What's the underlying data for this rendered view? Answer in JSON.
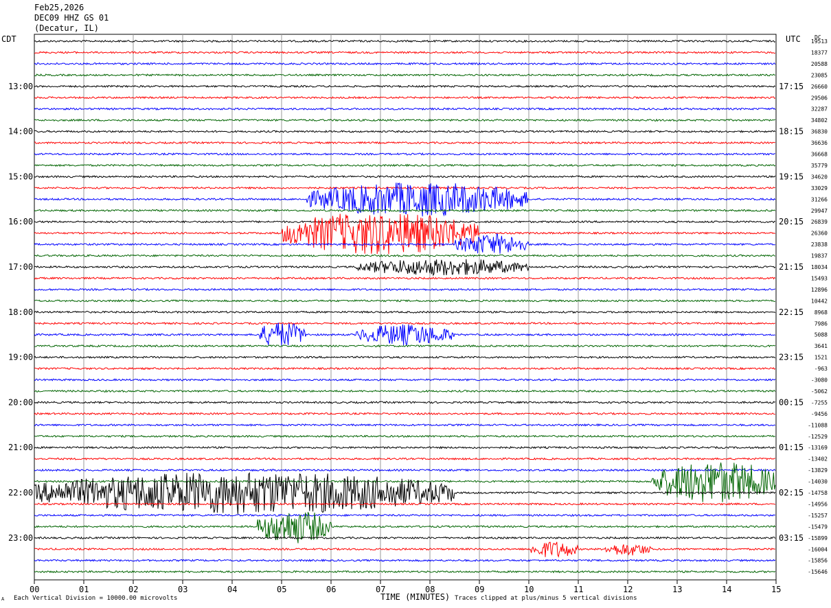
{
  "header": {
    "date": "Feb25,2026",
    "station": "DEC09 HHZ GS 01",
    "location": "(Decatur, IL)"
  },
  "axis_labels": {
    "left_tz": "CDT",
    "right_tz": "UTC",
    "dc": "DC",
    "xlabel": "TIME (MINUTES)"
  },
  "footer": {
    "left_note": "Each Vertical Division = 10000.00 microvolts",
    "right_note": "Traces clipped at plus/minus 5 vertical divisions",
    "corner_mark": "A"
  },
  "chart_data": {
    "type": "line",
    "title": "DEC09 HHZ GS 01",
    "xlabel": "TIME (MINUTES)",
    "xlim": [
      0,
      15
    ],
    "x_ticks": [
      "00",
      "01",
      "02",
      "03",
      "04",
      "05",
      "06",
      "07",
      "08",
      "09",
      "10",
      "11",
      "12",
      "13",
      "14",
      "15"
    ],
    "trace_colors": [
      "#000000",
      "#ff0000",
      "#0000ff",
      "#006400"
    ],
    "left_time_labels": [
      {
        "trace": 4,
        "label": "13:00"
      },
      {
        "trace": 8,
        "label": "14:00"
      },
      {
        "trace": 12,
        "label": "15:00"
      },
      {
        "trace": 16,
        "label": "16:00"
      },
      {
        "trace": 20,
        "label": "17:00"
      },
      {
        "trace": 24,
        "label": "18:00"
      },
      {
        "trace": 28,
        "label": "19:00"
      },
      {
        "trace": 32,
        "label": "20:00"
      },
      {
        "trace": 36,
        "label": "21:00"
      },
      {
        "trace": 40,
        "label": "22:00"
      },
      {
        "trace": 44,
        "label": "23:00"
      }
    ],
    "right_time_labels": [
      {
        "trace": 4,
        "label": "17:15"
      },
      {
        "trace": 8,
        "label": "18:15"
      },
      {
        "trace": 12,
        "label": "19:15"
      },
      {
        "trace": 16,
        "label": "20:15"
      },
      {
        "trace": 20,
        "label": "21:15"
      },
      {
        "trace": 24,
        "label": "22:15"
      },
      {
        "trace": 28,
        "label": "23:15"
      },
      {
        "trace": 32,
        "label": "00:15"
      },
      {
        "trace": 36,
        "label": "01:15"
      },
      {
        "trace": 40,
        "label": "02:15"
      },
      {
        "trace": 44,
        "label": "03:15"
      }
    ],
    "dc_offsets": [
      "19513",
      "18377",
      "20588",
      "23085",
      "26660",
      "29506",
      "32287",
      "34802",
      "36830",
      "36636",
      "36668",
      "35779",
      "34620",
      "33029",
      "31266",
      "29947",
      "26839",
      "26360",
      "23838",
      "19837",
      "18034",
      "15493",
      "12896",
      "10442",
      "8968",
      "7986",
      "5088",
      "3641",
      "1521",
      "-963",
      "-3080",
      "-5062",
      "-7255",
      "-9456",
      "-11088",
      "-12529",
      "-13169",
      "-13402",
      "-13829",
      "-14030",
      "-14758",
      "-14956",
      "-15257",
      "-15479",
      "-15899",
      "-16004",
      "-15856",
      "-15646"
    ],
    "events": [
      {
        "trace": 14,
        "start_min": 5.5,
        "end_min": 10.0,
        "amplitude": 4
      },
      {
        "trace": 17,
        "start_min": 5.0,
        "end_min": 9.0,
        "amplitude": 5
      },
      {
        "trace": 18,
        "start_min": 8.5,
        "end_min": 10.0,
        "amplitude": 2.5
      },
      {
        "trace": 20,
        "start_min": 6.5,
        "end_min": 10.0,
        "amplitude": 2
      },
      {
        "trace": 26,
        "start_min": 4.5,
        "end_min": 5.5,
        "amplitude": 3
      },
      {
        "trace": 26,
        "start_min": 6.5,
        "end_min": 8.5,
        "amplitude": 2.5
      },
      {
        "trace": 39,
        "start_min": 12.5,
        "end_min": 15.0,
        "amplitude": 5
      },
      {
        "trace": 40,
        "start_min": 0.0,
        "end_min": 8.5,
        "amplitude": 5
      },
      {
        "trace": 43,
        "start_min": 4.5,
        "end_min": 6.0,
        "amplitude": 4
      },
      {
        "trace": 45,
        "start_min": 10.0,
        "end_min": 11.0,
        "amplitude": 2
      },
      {
        "trace": 45,
        "start_min": 11.5,
        "end_min": 12.5,
        "amplitude": 1.5
      }
    ]
  }
}
